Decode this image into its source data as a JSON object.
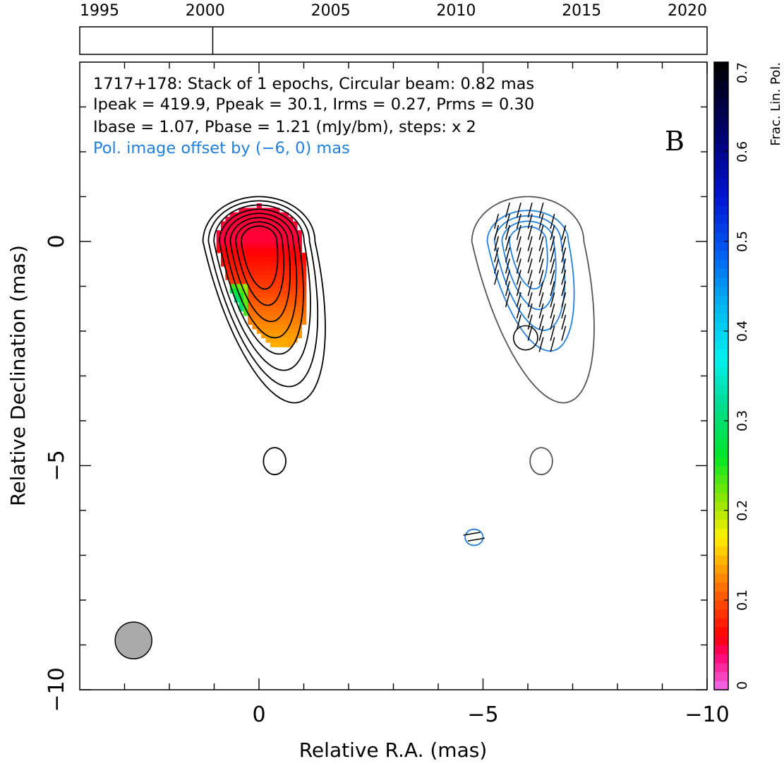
{
  "chart_data": {
    "type": "heatmap",
    "timeline": {
      "tick_labels": [
        "1995",
        "2000",
        "2005",
        "2010",
        "2015",
        "2020"
      ],
      "range": [
        1995,
        2020
      ],
      "epoch_markers": [
        2000.3
      ]
    },
    "annotations": {
      "line1": "1717+178: Stack of 1 epochs, Circular beam: 0.82 mas",
      "line2": "Ipeak = 419.9, Ppeak = 30.1, Irms = 0.27, Prms = 0.30",
      "line3": "Ibase = 1.07, Pbase = 1.21 (mJy/bm), steps: x 2",
      "line4": "Pol. image offset by (−6, 0) mas",
      "panel_letter": "B"
    },
    "axes": {
      "xlabel": "Relative R.A. (mas)",
      "ylabel": "Relative Declination (mas)",
      "xlim": [
        4,
        -10
      ],
      "ylim": [
        -10,
        4
      ],
      "x_ticks": [
        0,
        -5,
        -10
      ],
      "x_tick_labels": [
        "0",
        "−5",
        "−10"
      ],
      "y_ticks": [
        0,
        -5,
        -10
      ],
      "y_tick_labels": [
        "0",
        "−5",
        "−10"
      ],
      "x_minor": [
        3,
        2,
        1,
        0,
        -1,
        -2,
        -3,
        -4,
        -5,
        -6,
        -7,
        -8,
        -9,
        -10
      ],
      "y_minor": [
        3,
        2,
        1,
        0,
        -1,
        -2,
        -3,
        -4,
        -5,
        -6,
        -7,
        -8,
        -9,
        -10
      ]
    },
    "colorbar": {
      "label": "Frac. Lin. Pol.",
      "range": [
        0,
        0.7
      ],
      "ticks": [
        0,
        0.1,
        0.2,
        0.3,
        0.4,
        0.5,
        0.6,
        0.7
      ],
      "tick_labels": [
        "0",
        "0.1",
        "0.2",
        "0.3",
        "0.4",
        "0.5",
        "0.6",
        "0.7"
      ]
    },
    "stokes_i": {
      "peak_position": [
        0.0,
        0.0
      ],
      "contour_count": 8,
      "extra_islands": [
        {
          "x": -0.35,
          "y": -4.9
        }
      ]
    },
    "polarized_image": {
      "offset": [
        -6,
        0
      ],
      "peak_position": [
        -6.1,
        0.0
      ],
      "contour_count": 4,
      "extra_islands": [
        {
          "x": -6.3,
          "y": -4.9
        },
        {
          "x": -4.8,
          "y": -6.6
        }
      ],
      "evpa_orientation_deg": 15
    },
    "beam": {
      "center": [
        2.8,
        -8.9
      ],
      "diameter": 0.82
    },
    "colors": {
      "stokes_contours": "#000000",
      "pol_contours": "#1f80e0",
      "outer_gray_contour": "#555555",
      "beam_fill": "#aaaaaa"
    }
  }
}
